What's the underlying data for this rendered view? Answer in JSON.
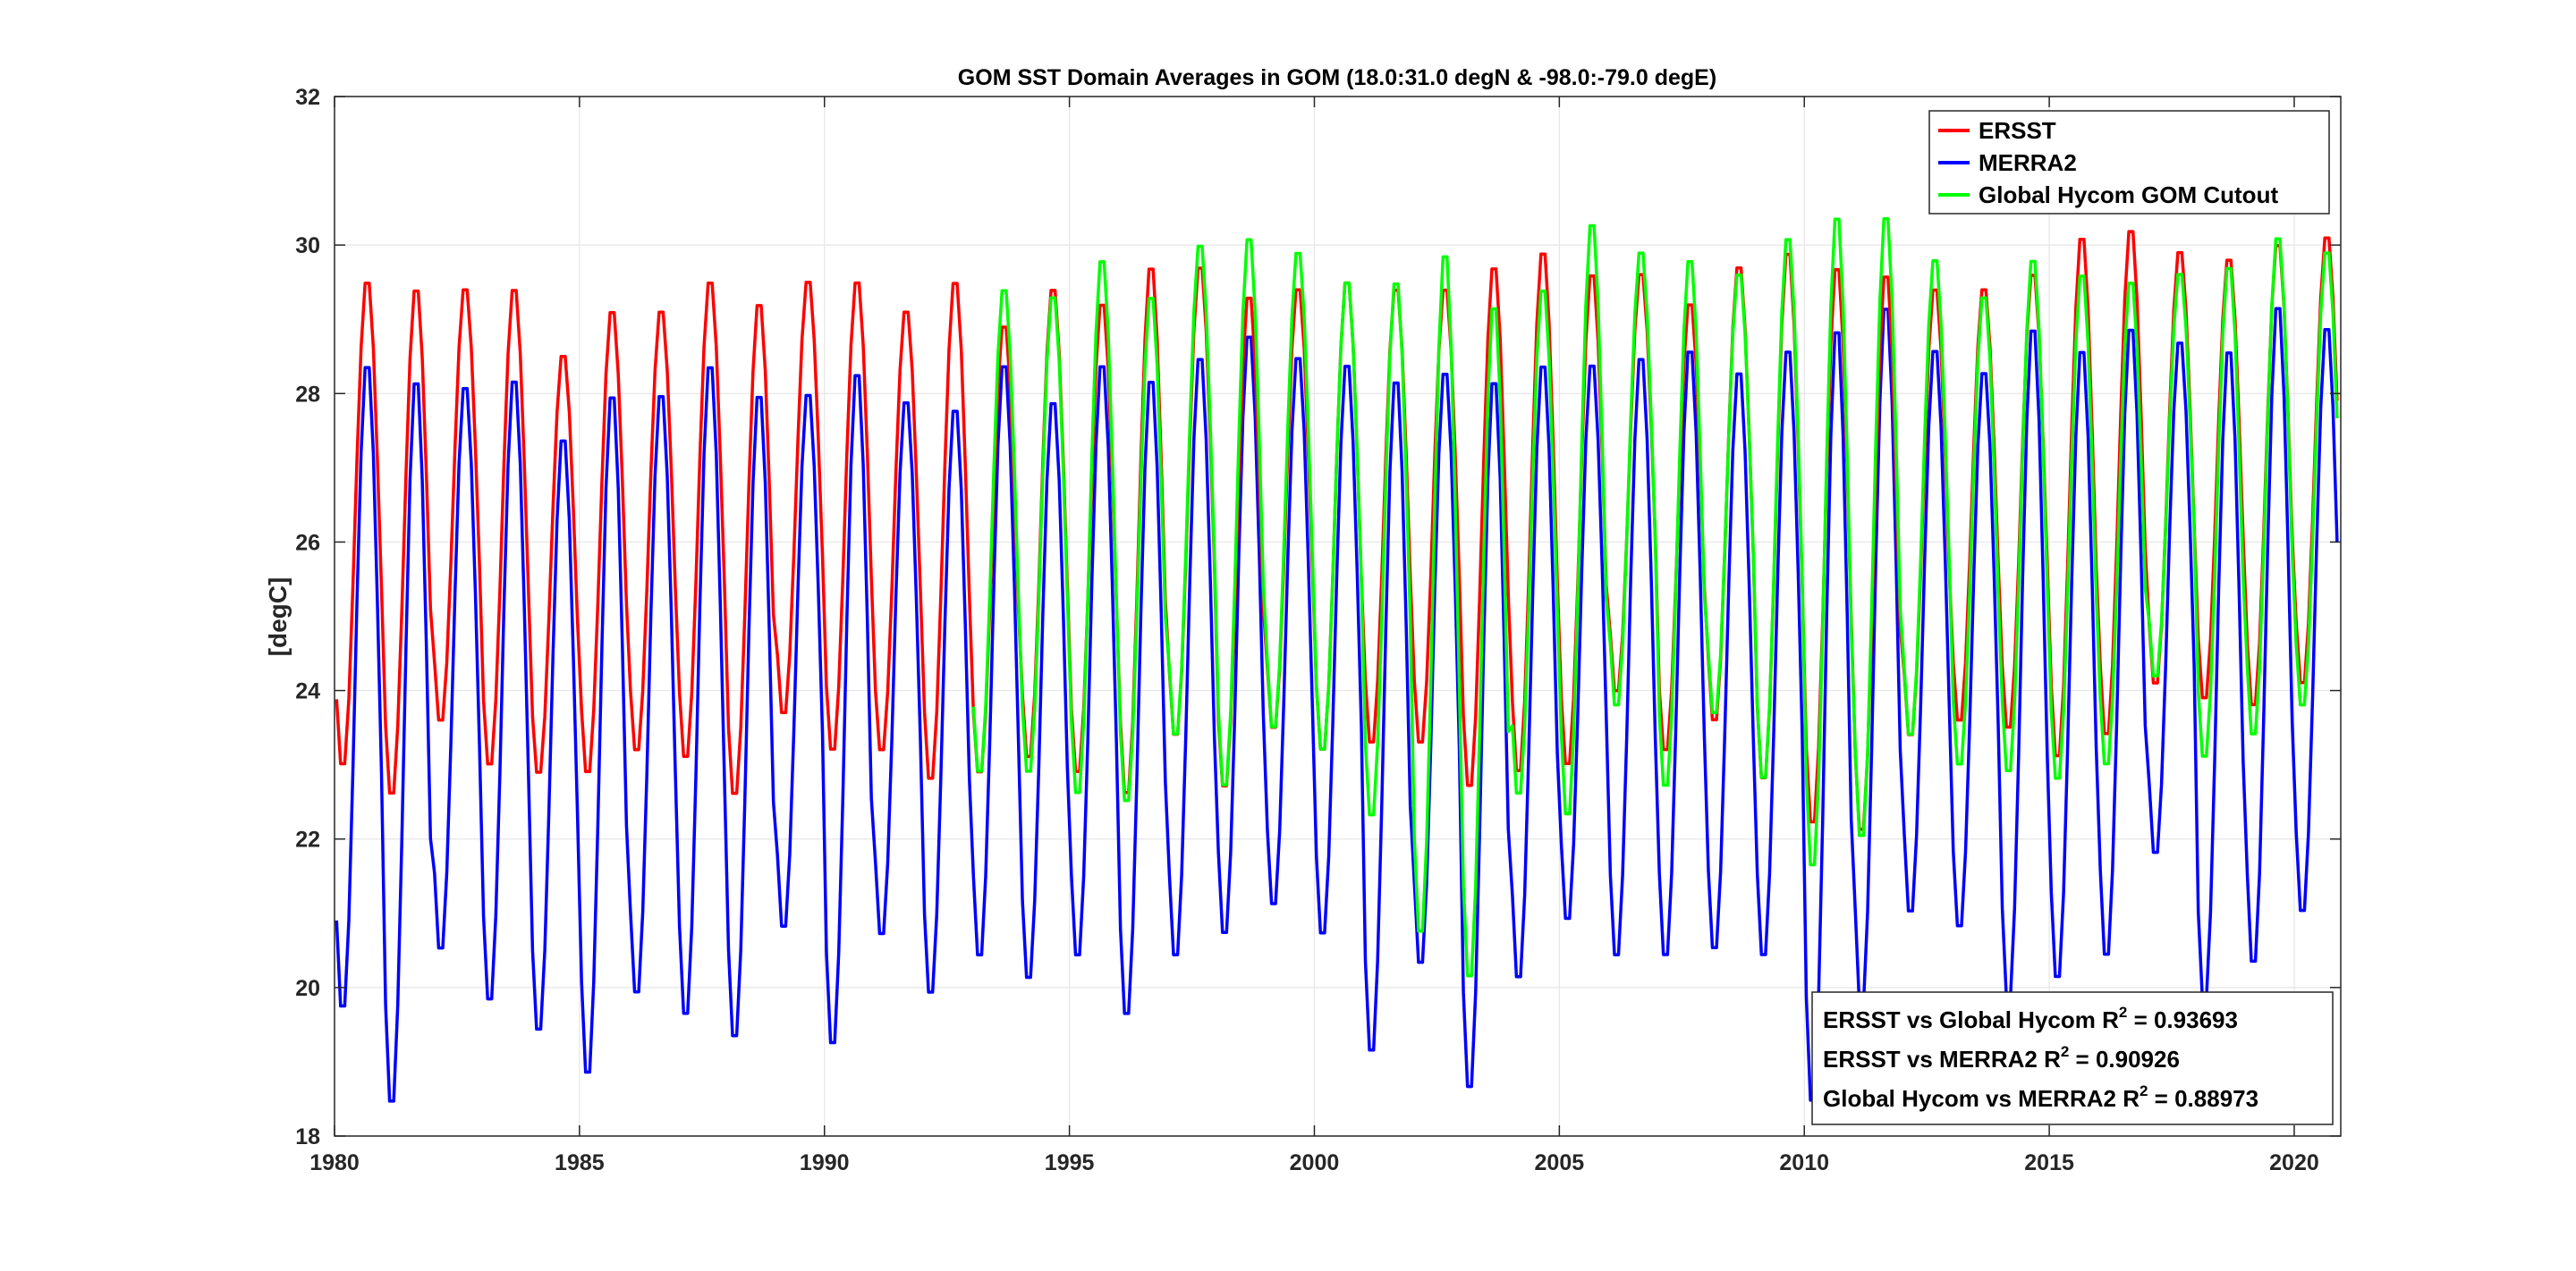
{
  "chart_data": {
    "type": "line",
    "title": "GOM SST Domain Averages in GOM (18.0:31.0 degN & -98.0:-79.0 degE)",
    "xlabel": "",
    "ylabel": "[degC]",
    "xlim": [
      1980,
      2020.95
    ],
    "ylim": [
      18,
      32
    ],
    "xticks": [
      1980,
      1985,
      1990,
      1995,
      2000,
      2005,
      2010,
      2015,
      2020
    ],
    "yticks": [
      18,
      20,
      22,
      24,
      26,
      28,
      30,
      32
    ],
    "xtick_labels": [
      "1980",
      "1985",
      "1990",
      "1995",
      "2000",
      "2005",
      "2010",
      "2015",
      "2020"
    ],
    "ytick_labels": [
      "18",
      "20",
      "22",
      "24",
      "26",
      "28",
      "30",
      "32"
    ],
    "grid": true,
    "legend_position": "top-right",
    "colors": {
      "ERSST": "#ff0000",
      "MERRA2": "#0000ff",
      "Global Hycom GOM Cutout": "#00ff00"
    },
    "series": [
      {
        "name": "ERSST",
        "start_year": 1980,
        "annual_max": [
          29.6,
          29.5,
          29.5,
          29.5,
          28.6,
          29.2,
          29.2,
          29.6,
          29.3,
          29.6,
          29.6,
          29.2,
          29.6,
          29.0,
          29.5,
          29.3,
          29.8,
          29.8,
          29.4,
          29.5,
          29.6,
          29.5,
          29.5,
          29.8,
          30.0,
          29.7,
          29.7,
          29.3,
          29.8,
          30.0,
          29.8,
          29.7,
          29.5,
          29.5,
          29.7,
          30.2,
          30.3,
          30.0,
          29.9,
          30.1,
          30.2
        ],
        "annual_min": [
          22.9,
          22.5,
          23.5,
          22.9,
          22.8,
          22.8,
          23.1,
          23.0,
          22.5,
          23.6,
          23.1,
          23.1,
          22.7,
          22.8,
          23.0,
          22.8,
          22.5,
          23.3,
          22.6,
          23.4,
          23.1,
          23.2,
          23.2,
          22.6,
          22.8,
          22.9,
          23.9,
          23.1,
          23.5,
          22.7,
          22.1,
          22.0,
          23.3,
          23.5,
          23.4,
          23.0,
          23.3,
          24.0,
          23.8,
          23.7,
          24.0
        ]
      },
      {
        "name": "MERRA2",
        "start_year": 1980,
        "annual_max": [
          28.5,
          28.3,
          28.2,
          28.3,
          27.5,
          28.1,
          28.1,
          28.5,
          28.1,
          28.1,
          28.4,
          28.0,
          27.9,
          28.5,
          28.0,
          28.5,
          28.3,
          28.6,
          28.9,
          28.6,
          28.5,
          28.3,
          28.4,
          28.3,
          28.5,
          28.5,
          28.6,
          28.7,
          28.4,
          28.7,
          29.0,
          29.3,
          28.7,
          28.4,
          29.0,
          28.7,
          29.0,
          28.8,
          28.7,
          29.3,
          29.0
        ],
        "annual_min": [
          19.6,
          18.3,
          20.4,
          19.7,
          19.3,
          18.7,
          19.8,
          19.5,
          19.2,
          20.7,
          19.1,
          20.6,
          19.8,
          20.3,
          20.0,
          20.3,
          19.5,
          20.3,
          20.6,
          21.0,
          20.6,
          19.0,
          20.2,
          18.5,
          20.0,
          20.8,
          20.3,
          20.3,
          20.4,
          20.3,
          18.3,
          19.6,
          20.9,
          20.7,
          19.7,
          20.0,
          20.3,
          21.7,
          19.7,
          20.2,
          20.9
        ]
      },
      {
        "name": "Global Hycom GOM Cutout",
        "start_year": 1993,
        "annual_max": [
          29.5,
          29.4,
          29.9,
          29.4,
          30.1,
          30.2,
          30.0,
          29.6,
          29.6,
          30.0,
          29.3,
          29.5,
          30.4,
          30.0,
          29.9,
          29.7,
          30.2,
          30.5,
          30.5,
          29.9,
          29.4,
          29.9,
          29.7,
          29.6,
          29.7,
          29.8,
          30.2,
          30.0
        ],
        "annual_min": [
          22.8,
          22.8,
          22.5,
          22.4,
          23.3,
          22.6,
          23.4,
          23.1,
          22.2,
          20.6,
          20.0,
          22.5,
          22.2,
          23.7,
          22.6,
          23.6,
          22.7,
          21.5,
          21.9,
          23.3,
          22.9,
          22.8,
          22.7,
          22.9,
          24.1,
          23.0,
          23.3,
          23.7
        ]
      }
    ],
    "legend": [
      "ERSST",
      "MERRA2",
      "Global Hycom GOM Cutout"
    ],
    "stats": {
      "line1_prefix": "ERSST vs Global Hycom R",
      "line1_value": " = 0.93693",
      "line2_prefix": "ERSST vs MERRA2 R",
      "line2_value": " = 0.90926",
      "line3_prefix": "Global Hycom vs MERRA2 R",
      "line3_value": " = 0.88973",
      "superscript": "2"
    }
  }
}
